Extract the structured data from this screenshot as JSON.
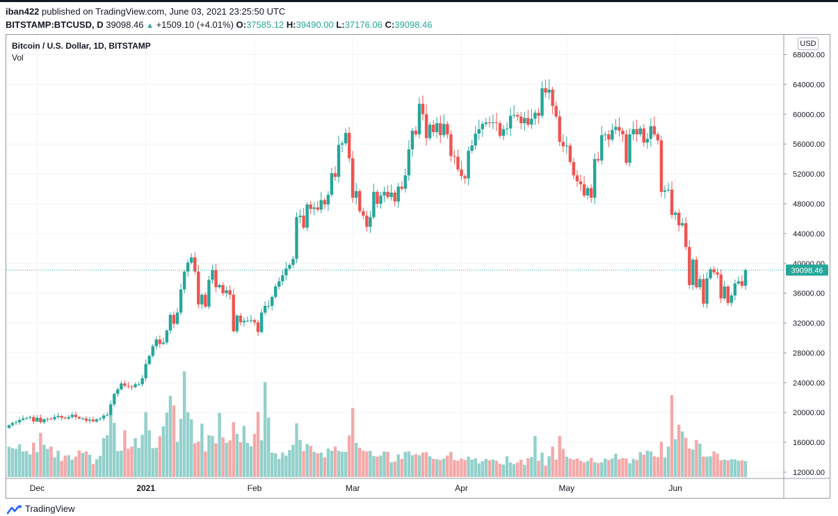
{
  "header": {
    "user": "iban422",
    "published": "published on TradingView.com, June 03, 2021 23:25:50 UTC",
    "symbol": "BITSTAMP:BTCUSD, D",
    "last": "39098.46",
    "change": "+1509.10 (+4.01%)",
    "o_label": "O:",
    "o_val": "37585.12",
    "h_label": "H:",
    "h_val": "39490.00",
    "l_label": "L:",
    "l_val": "37176.06",
    "c_label": "C:",
    "c_val": "39098.46"
  },
  "legend": {
    "title": "Bitcoin / U.S. Dollar, 1D, BITSTAMP",
    "vol": "Vol"
  },
  "currency": "USD",
  "footer": {
    "brand": "TradingView"
  },
  "colors": {
    "up": "#26a69a",
    "down": "#ef5350",
    "vol_up": "#93d0cb",
    "vol_down": "#f4a9a8"
  },
  "chart_data": {
    "type": "candlestick",
    "title": "Bitcoin / U.S. Dollar, 1D, BITSTAMP",
    "ylim": [
      11000,
      70000
    ],
    "y_ticks": [
      12000,
      16000,
      20000,
      24000,
      28000,
      32000,
      36000,
      40000,
      44000,
      48000,
      52000,
      56000,
      60000,
      64000,
      68000
    ],
    "x_ticks": [
      {
        "label": "Dec",
        "index": 8
      },
      {
        "label": "2021",
        "index": 39
      },
      {
        "label": "Feb",
        "index": 70
      },
      {
        "label": "Mar",
        "index": 98
      },
      {
        "label": "Apr",
        "index": 129
      },
      {
        "label": "May",
        "index": 159
      },
      {
        "label": "Jun",
        "index": 190
      }
    ],
    "last_price": 39098.46,
    "last_price_label": "39098.46",
    "close": [
      18300,
      18600,
      18700,
      19000,
      19200,
      19300,
      19400,
      18800,
      19300,
      18700,
      19100,
      19150,
      19100,
      19400,
      19550,
      19300,
      19200,
      19400,
      19700,
      19400,
      19200,
      19200,
      18900,
      19050,
      18800,
      19100,
      19200,
      19600,
      19700,
      21100,
      22500,
      23100,
      23900,
      23600,
      23500,
      23400,
      23800,
      23800,
      24600,
      26500,
      27600,
      28900,
      29800,
      29200,
      29400,
      31000,
      33100,
      31900,
      33400,
      36500,
      38900,
      40100,
      40800,
      38900,
      34500,
      35800,
      34200,
      37800,
      39100,
      36800,
      37100,
      36000,
      36400,
      35800,
      30900,
      33000,
      32100,
      32300,
      32300,
      32400,
      32100,
      30800,
      33400,
      34300,
      34300,
      35500,
      36900,
      37600,
      38400,
      39300,
      39800,
      40600,
      46200,
      46400,
      44800,
      47900,
      47300,
      47500,
      47200,
      48500,
      47900,
      49200,
      52100,
      51600,
      55900,
      56100,
      57500,
      54100,
      48800,
      49700,
      47000,
      46400,
      44900,
      46200,
      49600,
      48000,
      49100,
      49600,
      48900,
      49500,
      48300,
      50300,
      50000,
      51800,
      55300,
      57800,
      57300,
      61400,
      60000,
      56800,
      58600,
      57600,
      58800,
      57200,
      58700,
      57300,
      54400,
      54300,
      52600,
      51700,
      51400,
      55100,
      55800,
      57400,
      58000,
      58700,
      58900,
      58800,
      58900,
      58800,
      57100,
      58000,
      58100,
      59800,
      59900,
      59700,
      58800,
      59500,
      58600,
      59400,
      60200,
      59800,
      63500,
      62900,
      63300,
      61100,
      59700,
      56300,
      55700,
      55800,
      53600,
      51800,
      51000,
      50600,
      49100,
      50100,
      48800,
      54000,
      53800,
      57200,
      57300,
      56600,
      57900,
      58300,
      57800,
      57300,
      53500,
      57300,
      58000,
      57300,
      58100,
      56200,
      56700,
      58400,
      57300,
      56500,
      49600,
      49800,
      49900,
      46500,
      46800,
      45100,
      45400,
      42200,
      37100,
      40500,
      36800,
      37900,
      34600,
      38000,
      39200,
      38800,
      38500,
      35300,
      36900,
      34700,
      35700,
      37300,
      37600,
      37000,
      39098.46
    ],
    "volume": [
      8200,
      7800,
      7600,
      8800,
      6900,
      7000,
      6100,
      9300,
      6700,
      11900,
      8700,
      7600,
      8200,
      5300,
      7100,
      4400,
      5800,
      5900,
      4700,
      5500,
      7200,
      6500,
      6900,
      6000,
      3500,
      4800,
      5700,
      10500,
      11300,
      16800,
      14600,
      7000,
      7100,
      12600,
      7600,
      8200,
      10500,
      7900,
      11400,
      17500,
      12600,
      7800,
      7900,
      11000,
      13700,
      17400,
      21900,
      19300,
      9500,
      15700,
      28500,
      17500,
      15600,
      9100,
      9600,
      14400,
      6900,
      11300,
      11100,
      9100,
      17300,
      10700,
      9200,
      9900,
      14800,
      11600,
      9400,
      13800,
      9200,
      8300,
      11600,
      17600,
      9900,
      25600,
      16000,
      6600,
      6400,
      4900,
      6600,
      5800,
      7300,
      8700,
      14500,
      10000,
      7000,
      8900,
      8400,
      6800,
      6400,
      6600,
      5300,
      7700,
      7100,
      8200,
      7100,
      6800,
      6800,
      11200,
      18600,
      9200,
      7900,
      7100,
      6900,
      7100,
      5700,
      5500,
      5800,
      6900,
      6800,
      4000,
      4200,
      6100,
      4900,
      6800,
      6900,
      5900,
      6200,
      5900,
      6600,
      6700,
      5600,
      4900,
      4800,
      4600,
      5000,
      5800,
      6800,
      4600,
      4400,
      5000,
      4600,
      5500,
      4700,
      5000,
      3700,
      4300,
      4900,
      4500,
      4700,
      4400,
      3600,
      3400,
      5600,
      3900,
      3500,
      3900,
      4700,
      3300,
      5100,
      5400,
      11100,
      4400,
      6600,
      3100,
      5600,
      8200,
      4700,
      11100,
      7600,
      5500,
      5000,
      4700,
      5000,
      4400,
      3900,
      4300,
      5200,
      4000,
      3800,
      4000,
      5000,
      4600,
      5000,
      6300,
      4800,
      5100,
      5000,
      3700,
      4900,
      4600,
      6700,
      6000,
      7100,
      6900,
      5600,
      5400,
      9500,
      5300,
      8200,
      22100,
      10200,
      14100,
      12300,
      10600,
      7700,
      7400,
      10000,
      9000,
      5500,
      5500,
      5600,
      6900,
      6300,
      4500,
      4700,
      4500,
      4800,
      4800,
      4400,
      4500,
      4300
    ]
  }
}
